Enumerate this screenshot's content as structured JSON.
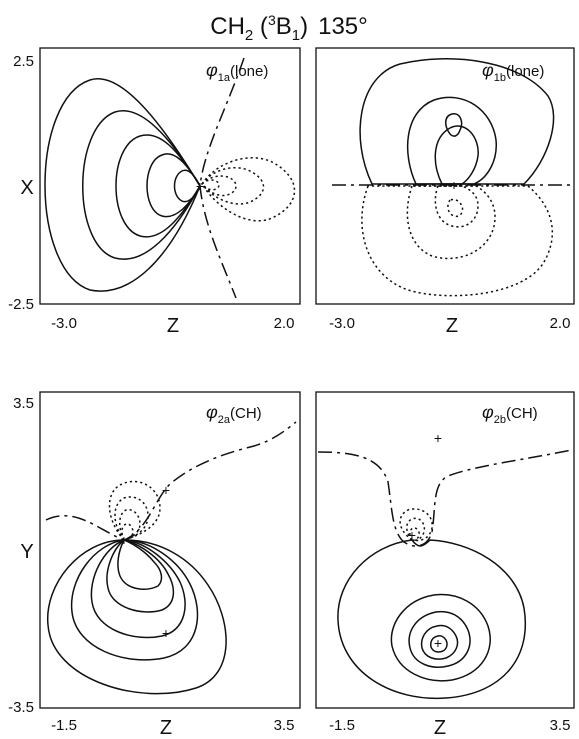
{
  "title": {
    "molecule": "CH",
    "molecule_sub": "2",
    "state_open": " (",
    "state_sup": "3",
    "state_letter": "B",
    "state_sub": "1",
    "state_close": ")",
    "angle": "135°"
  },
  "panels": [
    {
      "id": "phi-1a",
      "orbital_symbol": "φ",
      "orbital_sub": "1a",
      "orbital_label": "(lone)",
      "xlabel": "Z",
      "ylabel": "X",
      "xlim": [
        -3.0,
        2.0
      ],
      "ylim": [
        -2.5,
        2.5
      ],
      "xticks": [
        "-3.0",
        "2.0"
      ],
      "yticks": [
        "2.5",
        "-2.5"
      ]
    },
    {
      "id": "phi-1b",
      "orbital_symbol": "φ",
      "orbital_sub": "1b",
      "orbital_label": "(lone)",
      "xlabel": "Z",
      "ylabel": "",
      "xlim": [
        -3.0,
        2.0
      ],
      "ylim": [
        -2.5,
        2.5
      ],
      "xticks": [
        "-3.0",
        "2.0"
      ],
      "yticks": []
    },
    {
      "id": "phi-2a",
      "orbital_symbol": "φ",
      "orbital_sub": "2a",
      "orbital_label": "(CH)",
      "xlabel": "Z",
      "ylabel": "Y",
      "xlim": [
        -1.5,
        3.5
      ],
      "ylim": [
        -3.5,
        3.5
      ],
      "xticks": [
        "-1.5",
        "3.5"
      ],
      "yticks": [
        "3.5",
        "-3.5"
      ]
    },
    {
      "id": "phi-2b",
      "orbital_symbol": "φ",
      "orbital_sub": "2b",
      "orbital_label": "(CH)",
      "xlabel": "Z",
      "ylabel": "",
      "xlim": [
        -1.5,
        3.5
      ],
      "ylim": [
        -3.5,
        3.5
      ],
      "xticks": [
        "-1.5",
        "3.5"
      ],
      "yticks": []
    }
  ]
}
